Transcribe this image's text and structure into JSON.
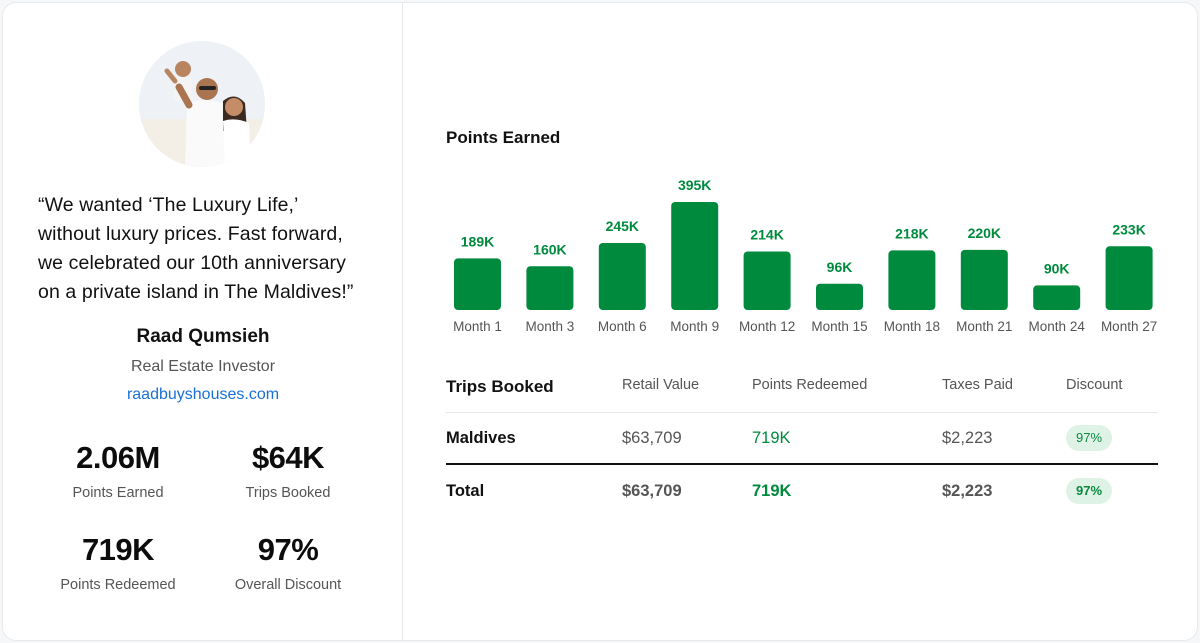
{
  "testimonial": {
    "quote_lines": [
      "“We wanted ‘The Luxury Life,’",
      "without luxury prices. Fast forward,",
      "we celebrated our 10th anniversary",
      "on a private island in The Maldives!”"
    ],
    "name": "Raad Qumsieh",
    "role": "Real Estate Investor",
    "website": "raadbuyshouses.com"
  },
  "stats": [
    {
      "value": "2.06M",
      "label": "Points Earned"
    },
    {
      "value": "$64K",
      "label": "Trips Booked"
    },
    {
      "value": "719K",
      "label": "Points Redeemed"
    },
    {
      "value": "97%",
      "label": "Overall Discount"
    }
  ],
  "chart_data": {
    "type": "bar",
    "title": "Points Earned",
    "categories": [
      "Month 1",
      "Month 3",
      "Month 6",
      "Month 9",
      "Month 12",
      "Month 15",
      "Month 18",
      "Month 21",
      "Month 24",
      "Month 27"
    ],
    "values": [
      189,
      160,
      245,
      395,
      214,
      96,
      218,
      220,
      90,
      233
    ],
    "data_labels": [
      "189K",
      "160K",
      "245K",
      "395K",
      "214K",
      "96K",
      "218K",
      "220K",
      "90K",
      "233K"
    ],
    "unit": "K",
    "color": "#008a3e",
    "grid": false,
    "legend": "none"
  },
  "trips": {
    "title": "Trips Booked",
    "columns": [
      "Retail Value",
      "Points Redeemed",
      "Taxes Paid",
      "Discount"
    ],
    "rows": [
      {
        "name": "Maldives",
        "retail": "$63,709",
        "points": "719K",
        "taxes": "$2,223",
        "discount": "97%"
      }
    ],
    "total": {
      "name": "Total",
      "retail": "$63,709",
      "points": "719K",
      "taxes": "$2,223",
      "discount": "97%"
    }
  },
  "colors": {
    "accent_green": "#008a3e",
    "link_blue": "#1a6fd6",
    "pill_bg": "#dff2e6"
  }
}
